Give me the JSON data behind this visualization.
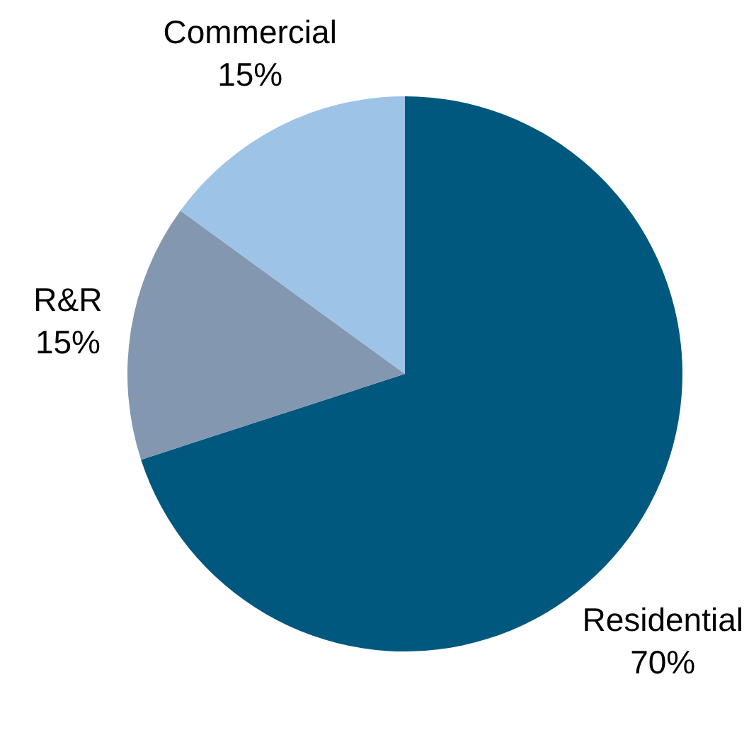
{
  "chart_data": {
    "type": "pie",
    "categories": [
      "Residential",
      "R&R",
      "Commercial"
    ],
    "values": [
      70,
      15,
      15
    ],
    "value_labels": [
      "70%",
      "15%",
      "15%"
    ],
    "colors": [
      "#01587f",
      "#8497b0",
      "#9dc3e6"
    ]
  }
}
